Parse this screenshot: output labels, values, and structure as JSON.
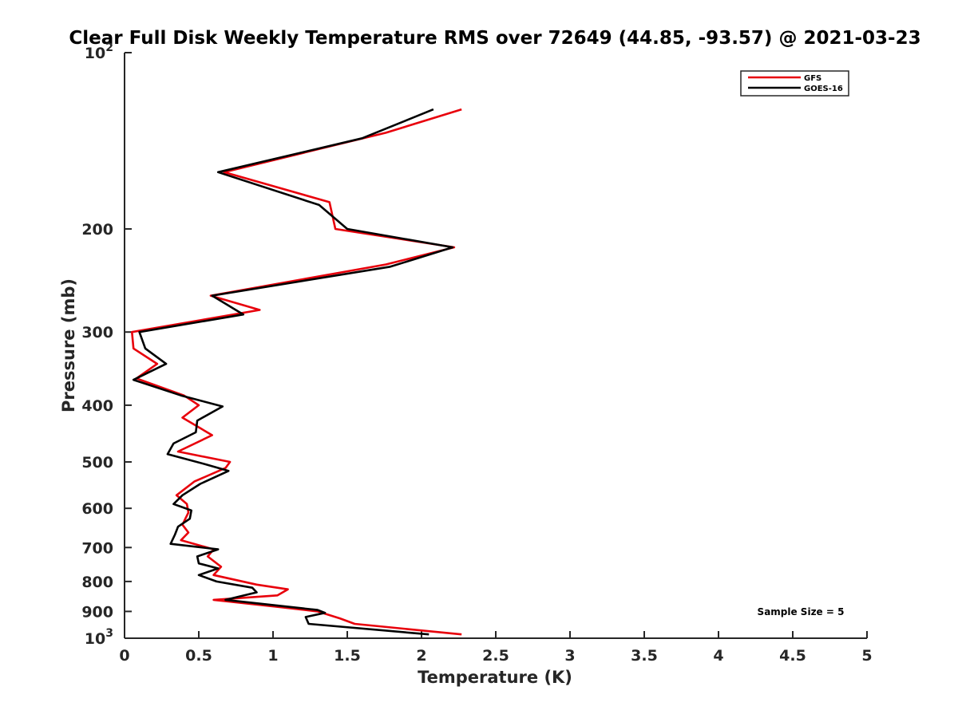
{
  "chart_data": {
    "type": "line",
    "title": "Clear Full Disk Weekly Temperature RMS over 72649 (44.85, -93.57) @ 2021-03-23",
    "xlabel": "Temperature (K)",
    "ylabel": "Pressure (mb)",
    "xlim": [
      0,
      5
    ],
    "ylim": [
      100,
      1000
    ],
    "y_scale": "log",
    "y_reversed": true,
    "grid": false,
    "legend_position": "top-right",
    "x_ticks": [
      "0",
      "0.5",
      "1",
      "1.5",
      "2",
      "2.5",
      "3",
      "3.5",
      "4",
      "4.5",
      "5"
    ],
    "y_ticks": [
      {
        "value": 100,
        "base": "10",
        "exp": "2"
      },
      {
        "value": 200,
        "label": "200"
      },
      {
        "value": 300,
        "label": "300"
      },
      {
        "value": 400,
        "label": "400"
      },
      {
        "value": 500,
        "label": "500"
      },
      {
        "value": 600,
        "label": "600"
      },
      {
        "value": 700,
        "label": "700"
      },
      {
        "value": 800,
        "label": "800"
      },
      {
        "value": 900,
        "label": "900"
      },
      {
        "value": 1000,
        "base": "10",
        "exp": "3"
      }
    ],
    "annotation": "Sample Size = 5",
    "series": [
      {
        "name": "GFS",
        "color": "#e8000b",
        "points": [
          {
            "t": 2.27,
            "p": 125
          },
          {
            "t": 1.76,
            "p": 137
          },
          {
            "t": 0.67,
            "p": 160
          },
          {
            "t": 1.38,
            "p": 180
          },
          {
            "t": 1.42,
            "p": 200
          },
          {
            "t": 2.22,
            "p": 215
          },
          {
            "t": 1.76,
            "p": 230
          },
          {
            "t": 0.58,
            "p": 260
          },
          {
            "t": 0.91,
            "p": 275
          },
          {
            "t": 0.05,
            "p": 300
          },
          {
            "t": 0.06,
            "p": 320
          },
          {
            "t": 0.22,
            "p": 340
          },
          {
            "t": 0.08,
            "p": 360
          },
          {
            "t": 0.4,
            "p": 385
          },
          {
            "t": 0.5,
            "p": 400
          },
          {
            "t": 0.39,
            "p": 420
          },
          {
            "t": 0.59,
            "p": 450
          },
          {
            "t": 0.36,
            "p": 480
          },
          {
            "t": 0.71,
            "p": 500
          },
          {
            "t": 0.68,
            "p": 512
          },
          {
            "t": 0.47,
            "p": 540
          },
          {
            "t": 0.35,
            "p": 570
          },
          {
            "t": 0.42,
            "p": 590
          },
          {
            "t": 0.43,
            "p": 610
          },
          {
            "t": 0.39,
            "p": 640
          },
          {
            "t": 0.43,
            "p": 660
          },
          {
            "t": 0.38,
            "p": 680
          },
          {
            "t": 0.6,
            "p": 705
          },
          {
            "t": 0.56,
            "p": 725
          },
          {
            "t": 0.65,
            "p": 755
          },
          {
            "t": 0.6,
            "p": 780
          },
          {
            "t": 0.89,
            "p": 810
          },
          {
            "t": 1.1,
            "p": 825
          },
          {
            "t": 1.03,
            "p": 845
          },
          {
            "t": 0.6,
            "p": 860
          },
          {
            "t": 1.05,
            "p": 885
          },
          {
            "t": 1.3,
            "p": 900
          },
          {
            "t": 1.45,
            "p": 925
          },
          {
            "t": 1.55,
            "p": 945
          },
          {
            "t": 2.27,
            "p": 985
          }
        ]
      },
      {
        "name": "GOES-16",
        "color": "#000000",
        "points": [
          {
            "t": 2.08,
            "p": 125
          },
          {
            "t": 1.6,
            "p": 140
          },
          {
            "t": 0.63,
            "p": 160
          },
          {
            "t": 1.31,
            "p": 182
          },
          {
            "t": 1.5,
            "p": 200
          },
          {
            "t": 2.21,
            "p": 215
          },
          {
            "t": 1.79,
            "p": 232
          },
          {
            "t": 0.59,
            "p": 260
          },
          {
            "t": 0.8,
            "p": 280
          },
          {
            "t": 0.1,
            "p": 300
          },
          {
            "t": 0.14,
            "p": 320
          },
          {
            "t": 0.28,
            "p": 340
          },
          {
            "t": 0.06,
            "p": 362
          },
          {
            "t": 0.38,
            "p": 385
          },
          {
            "t": 0.66,
            "p": 402
          },
          {
            "t": 0.49,
            "p": 425
          },
          {
            "t": 0.48,
            "p": 445
          },
          {
            "t": 0.33,
            "p": 465
          },
          {
            "t": 0.29,
            "p": 485
          },
          {
            "t": 0.55,
            "p": 505
          },
          {
            "t": 0.7,
            "p": 518
          },
          {
            "t": 0.51,
            "p": 545
          },
          {
            "t": 0.39,
            "p": 570
          },
          {
            "t": 0.33,
            "p": 590
          },
          {
            "t": 0.45,
            "p": 605
          },
          {
            "t": 0.44,
            "p": 625
          },
          {
            "t": 0.36,
            "p": 645
          },
          {
            "t": 0.34,
            "p": 665
          },
          {
            "t": 0.31,
            "p": 690
          },
          {
            "t": 0.63,
            "p": 705
          },
          {
            "t": 0.49,
            "p": 725
          },
          {
            "t": 0.5,
            "p": 745
          },
          {
            "t": 0.63,
            "p": 760
          },
          {
            "t": 0.5,
            "p": 780
          },
          {
            "t": 0.62,
            "p": 800
          },
          {
            "t": 0.86,
            "p": 820
          },
          {
            "t": 0.89,
            "p": 835
          },
          {
            "t": 0.68,
            "p": 860
          },
          {
            "t": 1.3,
            "p": 895
          },
          {
            "t": 1.35,
            "p": 905
          },
          {
            "t": 1.22,
            "p": 920
          },
          {
            "t": 1.24,
            "p": 945
          },
          {
            "t": 2.05,
            "p": 985
          }
        ]
      }
    ]
  }
}
